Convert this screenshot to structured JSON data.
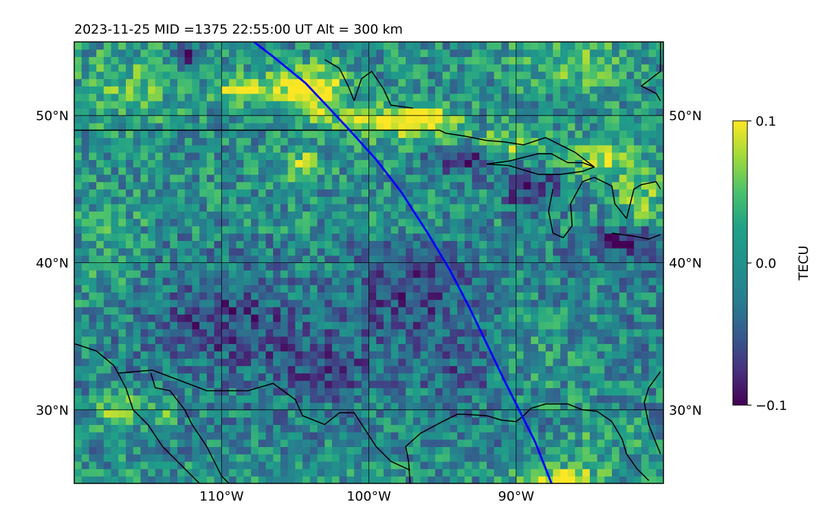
{
  "chart_data": {
    "type": "heatmap",
    "title": "2023-11-25  MID =1375    22:55:00  UT  Alt = 300 km",
    "map_extent": {
      "lon_range": [
        -120,
        -80
      ],
      "lat_range": [
        25,
        55
      ]
    },
    "x_ticks": [
      {
        "lon": -110,
        "label": "110°W"
      },
      {
        "lon": -100,
        "label": "100°W"
      },
      {
        "lon": -90,
        "label": "90°W"
      }
    ],
    "y_ticks": [
      {
        "lat": 50,
        "label": "50°N"
      },
      {
        "lat": 40,
        "label": "40°N"
      },
      {
        "lat": 30,
        "label": "30°N"
      }
    ],
    "grid": true,
    "colorbar": {
      "label": "TECU",
      "range": [
        -0.1,
        0.1
      ],
      "ticks": [
        {
          "value": 0.1,
          "label": "0.1"
        },
        {
          "value": 0.0,
          "label": "0.0"
        },
        {
          "value": -0.1,
          "label": "−0.1"
        }
      ],
      "colormap": "viridis"
    },
    "colors": {
      "track": "#0000ff",
      "coast": "#000000"
    },
    "track": [
      [
        -107.8,
        55.0
      ],
      [
        -106.5,
        54.0
      ],
      [
        -104.3,
        52.2
      ],
      [
        -102.7,
        50.5
      ],
      [
        -101.3,
        49.0
      ],
      [
        -99.5,
        47.0
      ],
      [
        -97.8,
        44.8
      ],
      [
        -96.0,
        42.0
      ],
      [
        -94.5,
        39.5
      ],
      [
        -93.2,
        37.0
      ],
      [
        -92.0,
        34.5
      ],
      [
        -90.8,
        32.0
      ],
      [
        -89.8,
        30.0
      ],
      [
        -88.7,
        27.8
      ],
      [
        -87.6,
        25.0
      ]
    ],
    "anomaly_regions": [
      {
        "lon": -104,
        "lat": 51.6,
        "rlon": 2.5,
        "rlat": 1.7,
        "value": 0.12
      },
      {
        "lon": -108.5,
        "lat": 51.8,
        "rlon": 1.8,
        "rlat": 0.9,
        "value": 0.09
      },
      {
        "lon": -98.5,
        "lat": 49.5,
        "rlon": 3.0,
        "rlat": 1.0,
        "value": 0.1
      },
      {
        "lon": -95.5,
        "lat": 49.6,
        "rlon": 1.5,
        "rlat": 1.0,
        "value": 0.08
      },
      {
        "lon": -104.5,
        "lat": 46.6,
        "rlon": 1.2,
        "rlat": 0.9,
        "value": 0.08
      },
      {
        "lon": -90.5,
        "lat": 47.8,
        "rlon": 3.0,
        "rlat": 1.2,
        "value": 0.07
      },
      {
        "lon": -84.0,
        "lat": 47.0,
        "rlon": 2.5,
        "rlat": 1.5,
        "value": 0.06
      },
      {
        "lon": -81.5,
        "lat": 44.5,
        "rlon": 1.5,
        "rlat": 1.5,
        "value": 0.06
      },
      {
        "lon": -93.0,
        "lat": 47.0,
        "rlon": 2.5,
        "rlat": 1.0,
        "value": -0.09
      },
      {
        "lon": -89.0,
        "lat": 45.0,
        "rlon": 2.0,
        "rlat": 1.5,
        "value": -0.08
      },
      {
        "lon": -82.5,
        "lat": 41.5,
        "rlon": 2.5,
        "rlat": 1.0,
        "value": -0.08
      },
      {
        "lon": -112.5,
        "lat": 54.3,
        "rlon": 1.0,
        "rlat": 0.9,
        "value": -0.08
      },
      {
        "lon": -117.0,
        "lat": 30.0,
        "rlon": 1.5,
        "rlat": 1.5,
        "value": 0.08
      },
      {
        "lon": -114.0,
        "lat": 29.5,
        "rlon": 1.0,
        "rlat": 1.0,
        "value": 0.06
      },
      {
        "lon": -87.0,
        "lat": 25.4,
        "rlon": 2.5,
        "rlat": 0.7,
        "value": 0.09
      },
      {
        "lon": -116.5,
        "lat": 52.0,
        "rlon": 3.5,
        "rlat": 2.5,
        "value": 0.04
      },
      {
        "lon": -86.0,
        "lat": 53.5,
        "rlon": 4.0,
        "rlat": 2.0,
        "value": 0.04
      },
      {
        "lon": -110.0,
        "lat": 36.0,
        "rlon": 5.0,
        "rlat": 3.0,
        "value": -0.05
      },
      {
        "lon": -97.0,
        "lat": 38.0,
        "rlon": 4.0,
        "rlat": 3.0,
        "value": -0.05
      },
      {
        "lon": -103.0,
        "lat": 33.0,
        "rlon": 4.0,
        "rlat": 2.5,
        "value": -0.04
      },
      {
        "lon": -93.5,
        "lat": 32.5,
        "rlon": 3.0,
        "rlat": 2.0,
        "value": -0.03
      },
      {
        "lon": -118.0,
        "lat": 40.0,
        "rlon": 3.0,
        "rlat": 4.0,
        "value": 0.02
      },
      {
        "lon": -88.0,
        "lat": 33.0,
        "rlon": 3.0,
        "rlat": 3.0,
        "value": 0.02
      },
      {
        "lon": -84.0,
        "lat": 28.0,
        "rlon": 3.0,
        "rlat": 2.0,
        "value": 0.03
      }
    ],
    "coastlines": [
      [
        [
          -120,
          49
        ],
        [
          -95.2,
          49
        ]
      ],
      [
        [
          -95.2,
          49
        ],
        [
          -94.8,
          48.8
        ],
        [
          -93.5,
          48.6
        ],
        [
          -92.0,
          48.3
        ],
        [
          -90.8,
          48.2
        ],
        [
          -89.5,
          48.0
        ],
        [
          -88.0,
          48.5
        ],
        [
          -86.0,
          47.5
        ],
        [
          -84.7,
          46.5
        ]
      ],
      [
        [
          -92.0,
          46.7
        ],
        [
          -90.5,
          46.9
        ],
        [
          -88.5,
          47.4
        ],
        [
          -87.6,
          47.4
        ],
        [
          -86.5,
          46.8
        ],
        [
          -85.5,
          46.8
        ],
        [
          -84.7,
          46.5
        ],
        [
          -85.5,
          46.2
        ],
        [
          -87.0,
          46.0
        ],
        [
          -88.5,
          46.0
        ],
        [
          -90.5,
          46.6
        ],
        [
          -92.0,
          46.7
        ]
      ],
      [
        [
          -87.5,
          45.0
        ],
        [
          -87.8,
          43.5
        ],
        [
          -87.5,
          42.0
        ],
        [
          -86.8,
          41.7
        ],
        [
          -86.2,
          42.5
        ],
        [
          -86.3,
          44.0
        ],
        [
          -85.5,
          45.5
        ],
        [
          -84.7,
          45.8
        ]
      ],
      [
        [
          -84.7,
          45.8
        ],
        [
          -83.5,
          45.2
        ],
        [
          -83.3,
          44.0
        ],
        [
          -82.5,
          43.0
        ],
        [
          -82.0,
          45.0
        ],
        [
          -81.5,
          45.3
        ],
        [
          -80.5,
          45.5
        ],
        [
          -80.2,
          45.0
        ]
      ],
      [
        [
          -83.5,
          42.0
        ],
        [
          -82.0,
          41.8
        ],
        [
          -81.0,
          41.6
        ],
        [
          -80.2,
          41.9
        ]
      ],
      [
        [
          -103.0,
          53.8
        ],
        [
          -102.0,
          53.2
        ],
        [
          -101.4,
          52.0
        ],
        [
          -101.0,
          51.0
        ]
      ],
      [
        [
          -101.0,
          51.0
        ],
        [
          -100.5,
          52.5
        ],
        [
          -99.8,
          53.0
        ],
        [
          -99.0,
          51.8
        ],
        [
          -98.5,
          50.7
        ],
        [
          -97.0,
          50.5
        ]
      ],
      [
        [
          -80.2,
          55.0
        ],
        [
          -80.2,
          53.0
        ],
        [
          -81.5,
          52.0
        ],
        [
          -80.5,
          51.5
        ],
        [
          -80.2,
          51.0
        ]
      ],
      [
        [
          -120,
          34.5
        ],
        [
          -118.5,
          34.0
        ],
        [
          -117.3,
          33.0
        ],
        [
          -116.5,
          31.5
        ],
        [
          -116.0,
          30.0
        ],
        [
          -115.0,
          29.0
        ],
        [
          -114.0,
          27.5
        ],
        [
          -112.5,
          26.0
        ],
        [
          -111.5,
          25.0
        ]
      ],
      [
        [
          -114.8,
          32.5
        ],
        [
          -114.5,
          31.5
        ],
        [
          -113.5,
          31.3
        ],
        [
          -112.5,
          30.0
        ],
        [
          -112.0,
          29.0
        ],
        [
          -111.0,
          27.5
        ],
        [
          -110.0,
          25.5
        ],
        [
          -109.5,
          25.0
        ]
      ],
      [
        [
          -117.0,
          32.5
        ],
        [
          -114.7,
          32.7
        ],
        [
          -111.0,
          31.3
        ],
        [
          -108.2,
          31.3
        ],
        [
          -106.5,
          31.8
        ],
        [
          -105.0,
          30.7
        ],
        [
          -104.5,
          29.6
        ],
        [
          -103.0,
          29.0
        ],
        [
          -102.0,
          29.8
        ],
        [
          -101.0,
          29.8
        ],
        [
          -99.5,
          27.5
        ],
        [
          -98.5,
          26.5
        ],
        [
          -97.2,
          25.9
        ]
      ],
      [
        [
          -97.2,
          25.0
        ],
        [
          -97.3,
          26.5
        ],
        [
          -97.5,
          27.5
        ],
        [
          -96.5,
          28.4
        ],
        [
          -95.0,
          29.2
        ],
        [
          -94.0,
          29.7
        ],
        [
          -93.5,
          29.7
        ],
        [
          -92.0,
          29.6
        ],
        [
          -91.0,
          29.3
        ],
        [
          -90.0,
          29.2
        ],
        [
          -89.5,
          29.6
        ],
        [
          -89.0,
          30.1
        ],
        [
          -88.0,
          30.4
        ],
        [
          -86.5,
          30.4
        ],
        [
          -85.5,
          30.0
        ],
        [
          -84.5,
          29.9
        ],
        [
          -83.5,
          29.2
        ],
        [
          -82.8,
          28.0
        ],
        [
          -82.5,
          27.0
        ],
        [
          -81.8,
          26.0
        ],
        [
          -81.0,
          25.2
        ]
      ],
      [
        [
          -80.2,
          32.6
        ],
        [
          -81.0,
          31.5
        ],
        [
          -81.3,
          30.5
        ],
        [
          -81.0,
          29.0
        ],
        [
          -80.6,
          28.0
        ],
        [
          -80.2,
          27.0
        ]
      ]
    ]
  }
}
